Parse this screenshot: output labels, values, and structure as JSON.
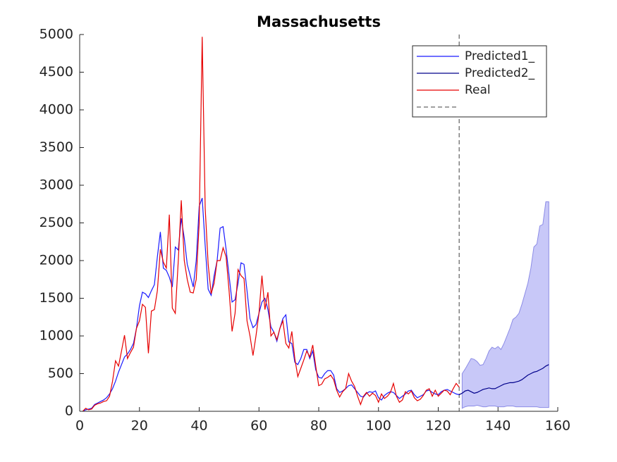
{
  "chart_data": {
    "type": "line",
    "title": "Massachusetts",
    "xlim": [
      0,
      160
    ],
    "xticks": [
      0,
      20,
      40,
      60,
      80,
      100,
      120,
      140,
      160
    ],
    "ylim": [
      0,
      5000
    ],
    "yticks": [
      0,
      500,
      1000,
      1500,
      2000,
      2500,
      3000,
      3500,
      4000,
      4500,
      5000
    ],
    "vline": 127,
    "vline_color": "#404040",
    "band": {
      "color": "#c8c8f8",
      "edge_color": "#8c8ce6",
      "x": [
        128,
        129,
        130,
        131,
        132,
        133,
        134,
        135,
        136,
        137,
        138,
        139,
        140,
        141,
        142,
        143,
        144,
        145,
        146,
        147,
        148,
        149,
        150,
        151,
        152,
        153,
        154,
        155,
        156,
        157
      ],
      "upper": [
        500,
        560,
        630,
        700,
        690,
        660,
        610,
        620,
        700,
        800,
        850,
        830,
        860,
        820,
        900,
        1000,
        1100,
        1220,
        1250,
        1300,
        1420,
        1560,
        1700,
        1900,
        2180,
        2220,
        2460,
        2480,
        2780,
        2780
      ],
      "lower": [
        40,
        60,
        70,
        70,
        70,
        80,
        70,
        60,
        60,
        70,
        70,
        70,
        60,
        60,
        60,
        70,
        70,
        70,
        60,
        60,
        60,
        60,
        60,
        60,
        60,
        60,
        50,
        50,
        50,
        50
      ]
    },
    "series": [
      {
        "name": "Predicted1_",
        "color": "#1a1aff",
        "x": [
          1,
          2,
          3,
          4,
          5,
          6,
          7,
          8,
          9,
          10,
          11,
          12,
          13,
          14,
          15,
          16,
          17,
          18,
          19,
          20,
          21,
          22,
          23,
          24,
          25,
          26,
          27,
          28,
          29,
          30,
          31,
          32,
          33,
          34,
          35,
          36,
          37,
          38,
          39,
          40,
          41,
          42,
          43,
          44,
          45,
          46,
          47,
          48,
          49,
          50,
          51,
          52,
          53,
          54,
          55,
          56,
          57,
          58,
          59,
          60,
          61,
          62,
          63,
          64,
          65,
          66,
          67,
          68,
          69,
          70,
          71,
          72,
          73,
          74,
          75,
          76,
          77,
          78,
          79,
          80,
          81,
          82,
          83,
          84,
          85,
          86,
          87,
          88,
          89,
          90,
          91,
          92,
          93,
          94,
          95,
          96,
          97,
          98,
          99,
          100,
          101,
          102,
          103,
          104,
          105,
          106,
          107,
          108,
          109,
          110,
          111,
          112,
          113,
          114,
          115,
          116,
          117,
          118,
          119,
          120,
          121,
          122,
          123,
          124,
          125,
          126,
          127
        ],
        "values": [
          0,
          20,
          30,
          40,
          90,
          110,
          130,
          150,
          180,
          230,
          300,
          400,
          520,
          620,
          720,
          760,
          820,
          900,
          1100,
          1400,
          1580,
          1560,
          1510,
          1600,
          1680,
          2050,
          2380,
          1900,
          1870,
          1780,
          1650,
          2180,
          2140,
          2560,
          2300,
          1950,
          1800,
          1650,
          2000,
          2720,
          2830,
          2200,
          1620,
          1540,
          1800,
          2000,
          2430,
          2450,
          2150,
          1800,
          1450,
          1480,
          1700,
          1970,
          1950,
          1600,
          1230,
          1110,
          1150,
          1300,
          1450,
          1500,
          1350,
          1120,
          1050,
          930,
          1100,
          1230,
          1280,
          920,
          900,
          650,
          620,
          700,
          820,
          820,
          700,
          800,
          550,
          450,
          440,
          500,
          540,
          540,
          480,
          300,
          250,
          270,
          300,
          340,
          350,
          300,
          250,
          200,
          190,
          240,
          260,
          250,
          270,
          180,
          150,
          210,
          240,
          260,
          250,
          210,
          170,
          200,
          230,
          270,
          280,
          220,
          180,
          200,
          220,
          270,
          280,
          250,
          230,
          220,
          260,
          280,
          290,
          270,
          250,
          230,
          220
        ]
      },
      {
        "name": "Predicted2_",
        "color": "#00008b",
        "x": [
          127,
          128,
          129,
          130,
          131,
          132,
          133,
          134,
          135,
          136,
          137,
          138,
          139,
          140,
          141,
          142,
          143,
          144,
          145,
          146,
          147,
          148,
          149,
          150,
          151,
          152,
          153,
          154,
          155,
          156,
          157
        ],
        "values": [
          220,
          240,
          270,
          280,
          260,
          240,
          250,
          270,
          290,
          300,
          310,
          300,
          300,
          320,
          340,
          360,
          370,
          380,
          380,
          390,
          400,
          420,
          450,
          480,
          500,
          520,
          530,
          550,
          570,
          600,
          620
        ]
      },
      {
        "name": "Real",
        "color": "#e60000",
        "x": [
          1,
          2,
          3,
          4,
          5,
          6,
          7,
          8,
          9,
          10,
          11,
          12,
          13,
          14,
          15,
          16,
          17,
          18,
          19,
          20,
          21,
          22,
          23,
          24,
          25,
          26,
          27,
          28,
          29,
          30,
          31,
          32,
          33,
          34,
          35,
          36,
          37,
          38,
          39,
          40,
          41,
          42,
          43,
          44,
          45,
          46,
          47,
          48,
          49,
          50,
          51,
          52,
          53,
          54,
          55,
          56,
          57,
          58,
          59,
          60,
          61,
          62,
          63,
          64,
          65,
          66,
          67,
          68,
          69,
          70,
          71,
          72,
          73,
          74,
          75,
          76,
          77,
          78,
          79,
          80,
          81,
          82,
          83,
          84,
          85,
          86,
          87,
          88,
          89,
          90,
          91,
          92,
          93,
          94,
          95,
          96,
          97,
          98,
          99,
          100,
          101,
          102,
          103,
          104,
          105,
          106,
          107,
          108,
          109,
          110,
          111,
          112,
          113,
          114,
          115,
          116,
          117,
          118,
          119,
          120,
          121,
          122,
          123,
          124,
          125,
          126,
          127
        ],
        "values": [
          0,
          40,
          20,
          30,
          80,
          100,
          110,
          130,
          140,
          200,
          400,
          670,
          600,
          800,
          1010,
          700,
          780,
          850,
          1100,
          1200,
          1420,
          1380,
          770,
          1330,
          1350,
          1600,
          2150,
          1980,
          1900,
          2610,
          1370,
          1300,
          2000,
          2800,
          2000,
          1750,
          1580,
          1570,
          1750,
          2500,
          4970,
          2700,
          1950,
          1560,
          1700,
          2000,
          2000,
          2170,
          2050,
          1600,
          1060,
          1300,
          1880,
          1800,
          1760,
          1200,
          1000,
          740,
          1000,
          1300,
          1800,
          1350,
          1580,
          1000,
          1050,
          950,
          1100,
          1200,
          900,
          840,
          1060,
          700,
          460,
          570,
          680,
          800,
          720,
          880,
          600,
          340,
          360,
          430,
          450,
          480,
          420,
          280,
          190,
          260,
          300,
          500,
          400,
          330,
          200,
          90,
          200,
          250,
          200,
          240,
          210,
          120,
          230,
          170,
          200,
          250,
          370,
          200,
          120,
          150,
          260,
          230,
          270,
          180,
          140,
          160,
          210,
          280,
          300,
          200,
          280,
          200,
          240,
          280,
          270,
          220,
          300,
          370,
          320
        ]
      }
    ]
  }
}
